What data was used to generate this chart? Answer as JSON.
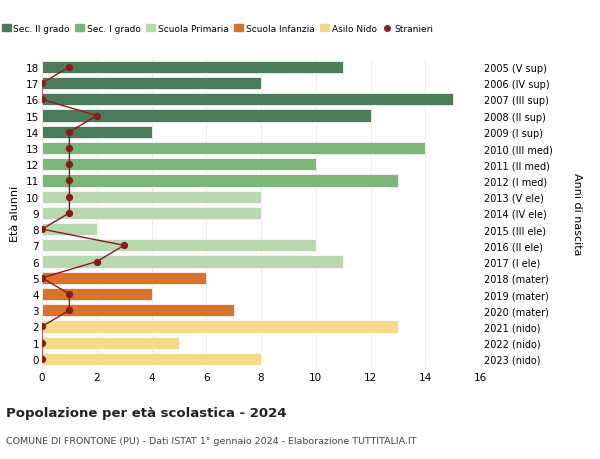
{
  "ages": [
    18,
    17,
    16,
    15,
    14,
    13,
    12,
    11,
    10,
    9,
    8,
    7,
    6,
    5,
    4,
    3,
    2,
    1,
    0
  ],
  "right_labels": [
    "2005 (V sup)",
    "2006 (IV sup)",
    "2007 (III sup)",
    "2008 (II sup)",
    "2009 (I sup)",
    "2010 (III med)",
    "2011 (II med)",
    "2012 (I med)",
    "2013 (V ele)",
    "2014 (IV ele)",
    "2015 (III ele)",
    "2016 (II ele)",
    "2017 (I ele)",
    "2018 (mater)",
    "2019 (mater)",
    "2020 (mater)",
    "2021 (nido)",
    "2022 (nido)",
    "2023 (nido)"
  ],
  "bar_values": [
    11,
    8,
    15,
    12,
    4,
    14,
    10,
    13,
    8,
    8,
    2,
    10,
    11,
    6,
    4,
    7,
    13,
    5,
    8
  ],
  "bar_colors": [
    "#4a7c59",
    "#4a7c59",
    "#4a7c59",
    "#4a7c59",
    "#4a7c59",
    "#7ab57a",
    "#7ab57a",
    "#7ab57a",
    "#b8d9b0",
    "#b8d9b0",
    "#b8d9b0",
    "#b8d9b0",
    "#b8d9b0",
    "#d9722a",
    "#d9722a",
    "#d9722a",
    "#f5d98a",
    "#f5d98a",
    "#f5d98a"
  ],
  "stranieri_values": [
    1,
    0,
    0,
    2,
    1,
    1,
    1,
    1,
    1,
    1,
    0,
    3,
    2,
    0,
    1,
    1,
    0,
    0,
    0
  ],
  "stranieri_color": "#8b1a1a",
  "ylabel_left": "Età alunni",
  "ylabel_right": "Anni di nascita",
  "title": "Popolazione per età scolastica - 2024",
  "subtitle": "COMUNE DI FRONTONE (PU) - Dati ISTAT 1° gennaio 2024 - Elaborazione TUTTITALIA.IT",
  "legend_items": [
    {
      "label": "Sec. II grado",
      "color": "#4a7c59",
      "type": "patch"
    },
    {
      "label": "Sec. I grado",
      "color": "#7ab57a",
      "type": "patch"
    },
    {
      "label": "Scuola Primaria",
      "color": "#b8d9b0",
      "type": "patch"
    },
    {
      "label": "Scuola Infanzia",
      "color": "#d9722a",
      "type": "patch"
    },
    {
      "label": "Asilo Nido",
      "color": "#f5d98a",
      "type": "patch"
    },
    {
      "label": "Stranieri",
      "color": "#8b1a1a",
      "type": "marker"
    }
  ],
  "xlim": [
    0,
    16
  ],
  "xticks": [
    0,
    2,
    4,
    6,
    8,
    10,
    12,
    14,
    16
  ],
  "bg_color": "#ffffff",
  "grid_color": "#dddddd",
  "bar_height": 0.75
}
